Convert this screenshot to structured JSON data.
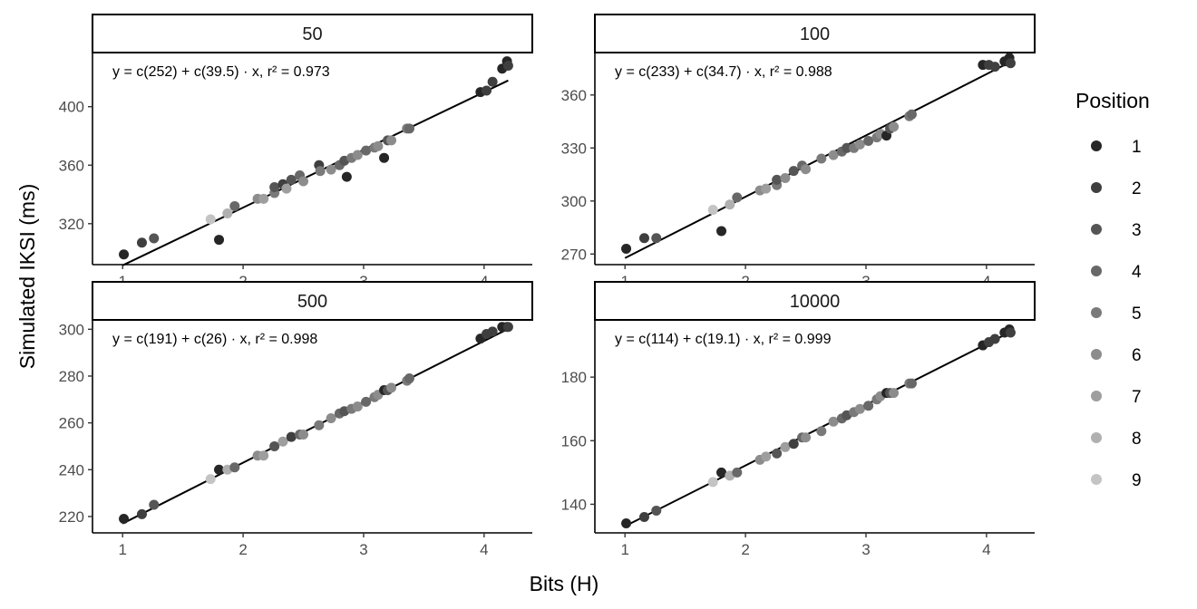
{
  "chart_data": {
    "type": "scatter",
    "xlabel": "Bits (H)",
    "ylabel": "Simulated IKSI (ms)",
    "legend": {
      "title": "Position",
      "placement": "right",
      "entries": [
        "1",
        "2",
        "3",
        "4",
        "5",
        "6",
        "7",
        "8",
        "9"
      ],
      "colors": [
        "#262626",
        "#3f3f3f",
        "#555555",
        "#686868",
        "#7a7a7a",
        "#8c8c8c",
        "#9e9e9e",
        "#b0b0b0",
        "#c4c4c4"
      ]
    },
    "x_ticks": [
      1,
      2,
      3,
      4
    ],
    "xlim": [
      0.75,
      4.4
    ],
    "panels": [
      {
        "strip": "50",
        "equation": "y = c(252) + c(39.5) · x,  r² = 0.973",
        "intercept": 252,
        "slope": 39.5,
        "ylim": [
          292,
          437
        ],
        "y_ticks": [
          320,
          360,
          400
        ],
        "points": [
          [
            1.01,
            299,
            1
          ],
          [
            1.16,
            307,
            2
          ],
          [
            1.26,
            310,
            3
          ],
          [
            1.8,
            309,
            1
          ],
          [
            1.73,
            323,
            9
          ],
          [
            1.87,
            327,
            8
          ],
          [
            1.93,
            332,
            4
          ],
          [
            2.12,
            337,
            6
          ],
          [
            2.17,
            337,
            7
          ],
          [
            2.26,
            341,
            5
          ],
          [
            2.26,
            345,
            3
          ],
          [
            2.33,
            347,
            2
          ],
          [
            2.36,
            344,
            7
          ],
          [
            2.4,
            350,
            3
          ],
          [
            2.47,
            353,
            4
          ],
          [
            2.5,
            349,
            6
          ],
          [
            2.63,
            360,
            2
          ],
          [
            2.64,
            356,
            5
          ],
          [
            2.73,
            357,
            6
          ],
          [
            2.8,
            360,
            4
          ],
          [
            2.84,
            363,
            3
          ],
          [
            2.86,
            352,
            1
          ],
          [
            2.9,
            365,
            5
          ],
          [
            2.95,
            367,
            6
          ],
          [
            3.02,
            370,
            4
          ],
          [
            3.09,
            372,
            5
          ],
          [
            3.12,
            373,
            6
          ],
          [
            3.17,
            365,
            1
          ],
          [
            3.2,
            377,
            3
          ],
          [
            3.23,
            377,
            6
          ],
          [
            3.36,
            385,
            5
          ],
          [
            3.38,
            385,
            4
          ],
          [
            3.97,
            410,
            1
          ],
          [
            4.02,
            411,
            2
          ],
          [
            4.07,
            417,
            2
          ],
          [
            4.15,
            426,
            1
          ],
          [
            4.19,
            431,
            1
          ],
          [
            4.2,
            428,
            2
          ]
        ]
      },
      {
        "strip": "100",
        "equation": "y = c(233) + c(34.7) · x,  r² = 0.988",
        "intercept": 233,
        "slope": 34.7,
        "ylim": [
          264,
          384
        ],
        "y_ticks": [
          270,
          300,
          330,
          360
        ],
        "points": [
          [
            1.01,
            273,
            1
          ],
          [
            1.16,
            279,
            2
          ],
          [
            1.26,
            279,
            3
          ],
          [
            1.8,
            283,
            1
          ],
          [
            1.73,
            295,
            9
          ],
          [
            1.87,
            298,
            8
          ],
          [
            1.93,
            302,
            4
          ],
          [
            2.12,
            306,
            6
          ],
          [
            2.17,
            307,
            7
          ],
          [
            2.26,
            309,
            5
          ],
          [
            2.26,
            312,
            3
          ],
          [
            2.33,
            313,
            6
          ],
          [
            2.4,
            317,
            3
          ],
          [
            2.47,
            320,
            4
          ],
          [
            2.5,
            318,
            6
          ],
          [
            2.63,
            324,
            5
          ],
          [
            2.73,
            326,
            6
          ],
          [
            2.8,
            328,
            4
          ],
          [
            2.84,
            330,
            3
          ],
          [
            2.9,
            330,
            5
          ],
          [
            2.95,
            332,
            6
          ],
          [
            3.02,
            334,
            4
          ],
          [
            3.09,
            336,
            5
          ],
          [
            3.12,
            338,
            6
          ],
          [
            3.17,
            337,
            1
          ],
          [
            3.2,
            341,
            3
          ],
          [
            3.23,
            342,
            6
          ],
          [
            3.36,
            348,
            5
          ],
          [
            3.38,
            349,
            4
          ],
          [
            3.97,
            377,
            1
          ],
          [
            4.02,
            377,
            2
          ],
          [
            4.07,
            376,
            2
          ],
          [
            4.15,
            379,
            1
          ],
          [
            4.19,
            381,
            1
          ],
          [
            4.2,
            378,
            2
          ]
        ]
      },
      {
        "strip": "500",
        "equation": "y = c(191) + c(26) · x,  r² = 0.998",
        "intercept": 191,
        "slope": 26,
        "ylim": [
          213,
          304
        ],
        "y_ticks": [
          220,
          240,
          260,
          280,
          300
        ],
        "points": [
          [
            1.01,
            219,
            1
          ],
          [
            1.16,
            221,
            2
          ],
          [
            1.26,
            225,
            3
          ],
          [
            1.8,
            240,
            1
          ],
          [
            1.73,
            236,
            9
          ],
          [
            1.87,
            240,
            8
          ],
          [
            1.93,
            241,
            4
          ],
          [
            2.12,
            246,
            6
          ],
          [
            2.17,
            246,
            7
          ],
          [
            2.26,
            250,
            3
          ],
          [
            2.33,
            252,
            7
          ],
          [
            2.4,
            254,
            2
          ],
          [
            2.47,
            255,
            4
          ],
          [
            2.5,
            255,
            6
          ],
          [
            2.63,
            259,
            5
          ],
          [
            2.73,
            262,
            6
          ],
          [
            2.8,
            264,
            4
          ],
          [
            2.84,
            265,
            3
          ],
          [
            2.9,
            266,
            5
          ],
          [
            2.95,
            267,
            6
          ],
          [
            3.02,
            269,
            4
          ],
          [
            3.09,
            271,
            5
          ],
          [
            3.12,
            272,
            6
          ],
          [
            3.17,
            274,
            1
          ],
          [
            3.2,
            274,
            3
          ],
          [
            3.23,
            275,
            6
          ],
          [
            3.36,
            278,
            5
          ],
          [
            3.38,
            279,
            4
          ],
          [
            3.97,
            296,
            1
          ],
          [
            4.02,
            298,
            2
          ],
          [
            4.07,
            299,
            2
          ],
          [
            4.15,
            301,
            1
          ],
          [
            4.19,
            301,
            1
          ],
          [
            4.2,
            301,
            2
          ]
        ]
      },
      {
        "strip": "10000",
        "equation": "y = c(114) + c(19.1) · x,  r² = 0.999",
        "intercept": 114,
        "slope": 19.1,
        "ylim": [
          131,
          198
        ],
        "y_ticks": [
          140,
          160,
          180
        ],
        "points": [
          [
            1.01,
            134,
            1
          ],
          [
            1.16,
            136,
            2
          ],
          [
            1.26,
            138,
            3
          ],
          [
            1.8,
            150,
            1
          ],
          [
            1.73,
            147,
            9
          ],
          [
            1.87,
            149,
            8
          ],
          [
            1.93,
            150,
            4
          ],
          [
            2.12,
            154,
            6
          ],
          [
            2.17,
            155,
            7
          ],
          [
            2.26,
            156,
            3
          ],
          [
            2.33,
            158,
            7
          ],
          [
            2.4,
            159,
            2
          ],
          [
            2.47,
            161,
            4
          ],
          [
            2.5,
            161,
            6
          ],
          [
            2.63,
            163,
            5
          ],
          [
            2.73,
            166,
            6
          ],
          [
            2.8,
            167,
            4
          ],
          [
            2.84,
            168,
            3
          ],
          [
            2.9,
            169,
            5
          ],
          [
            2.95,
            170,
            6
          ],
          [
            3.02,
            171,
            4
          ],
          [
            3.09,
            173,
            5
          ],
          [
            3.12,
            174,
            6
          ],
          [
            3.17,
            175,
            1
          ],
          [
            3.2,
            175,
            3
          ],
          [
            3.23,
            175,
            6
          ],
          [
            3.36,
            178,
            5
          ],
          [
            3.38,
            178,
            4
          ],
          [
            3.97,
            190,
            1
          ],
          [
            4.02,
            191,
            2
          ],
          [
            4.07,
            192,
            2
          ],
          [
            4.15,
            194,
            1
          ],
          [
            4.19,
            195,
            1
          ],
          [
            4.2,
            194,
            2
          ]
        ]
      }
    ]
  }
}
